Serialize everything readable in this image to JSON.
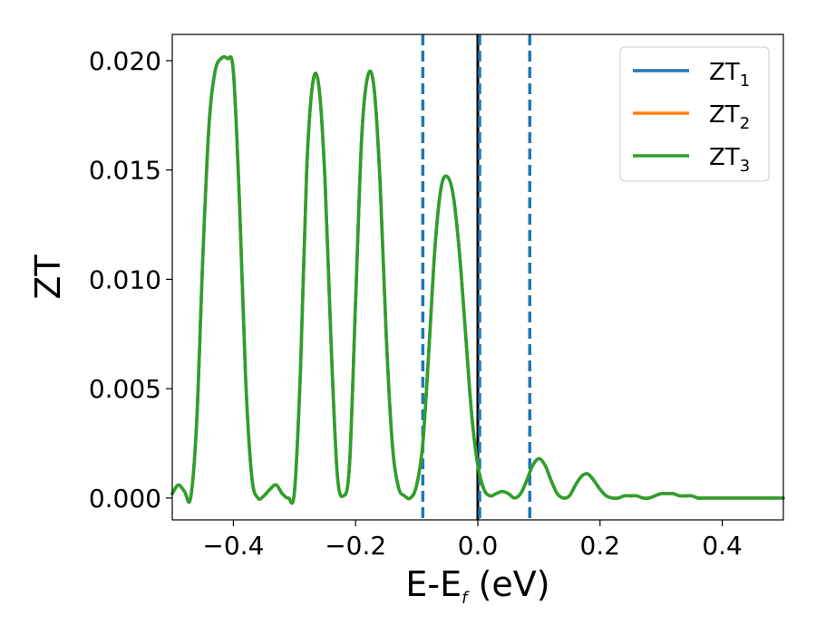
{
  "chart_data": {
    "type": "line",
    "xlabel_main": "E-E",
    "xlabel_sub": "f",
    "xlabel_tail": " (eV)",
    "ylabel": "ZT",
    "xlim": [
      -0.5,
      0.5
    ],
    "ylim": [
      -0.001,
      0.0212
    ],
    "xticks": [
      -0.4,
      -0.2,
      0.0,
      0.2,
      0.4
    ],
    "xtick_labels": [
      "−0.4",
      "−0.2",
      "0.0",
      "0.2",
      "0.4"
    ],
    "yticks": [
      0.0,
      0.005,
      0.01,
      0.015,
      0.02
    ],
    "ytick_labels": [
      "0.000",
      "0.005",
      "0.010",
      "0.015",
      "0.020"
    ],
    "legend_position": "top-right",
    "vlines": [
      {
        "x": -0.09,
        "style": "dashed",
        "color": "#1f77b4"
      },
      {
        "x": 0.0,
        "style": "solid",
        "color": "#000000"
      },
      {
        "x": 0.003,
        "style": "dashed",
        "color": "#1f77b4"
      },
      {
        "x": 0.085,
        "style": "dashed",
        "color": "#1f77b4"
      }
    ],
    "x": [
      -0.5,
      -0.49,
      -0.48,
      -0.47,
      -0.46,
      -0.45,
      -0.44,
      -0.43,
      -0.42,
      -0.41,
      -0.4,
      -0.39,
      -0.38,
      -0.37,
      -0.36,
      -0.35,
      -0.34,
      -0.33,
      -0.32,
      -0.31,
      -0.3,
      -0.29,
      -0.28,
      -0.27,
      -0.26,
      -0.25,
      -0.24,
      -0.23,
      -0.22,
      -0.21,
      -0.2,
      -0.19,
      -0.18,
      -0.17,
      -0.16,
      -0.15,
      -0.14,
      -0.13,
      -0.12,
      -0.11,
      -0.1,
      -0.09,
      -0.08,
      -0.07,
      -0.06,
      -0.05,
      -0.04,
      -0.03,
      -0.02,
      -0.01,
      0.0,
      0.01,
      0.02,
      0.03,
      0.04,
      0.05,
      0.06,
      0.07,
      0.08,
      0.09,
      0.1,
      0.11,
      0.12,
      0.13,
      0.14,
      0.15,
      0.16,
      0.17,
      0.18,
      0.19,
      0.2,
      0.21,
      0.22,
      0.23,
      0.24,
      0.25,
      0.26,
      0.27,
      0.28,
      0.29,
      0.3,
      0.31,
      0.32,
      0.33,
      0.34,
      0.35,
      0.36,
      0.37,
      0.38,
      0.39,
      0.4,
      0.41,
      0.42,
      0.43,
      0.44,
      0.45,
      0.46,
      0.47,
      0.48,
      0.49,
      0.5
    ],
    "series": [
      {
        "name": "ZT",
        "sub": "1",
        "color": "#1f77b4",
        "values": [
          0.0002,
          0.0006,
          0.0003,
          0.0,
          0.0035,
          0.011,
          0.017,
          0.0195,
          0.0201,
          0.0201,
          0.0195,
          0.0135,
          0.0055,
          0.001,
          0.0,
          0.0001,
          0.0004,
          0.0006,
          0.0002,
          0.0,
          0.0003,
          0.006,
          0.015,
          0.019,
          0.0188,
          0.0145,
          0.007,
          0.0011,
          0.0001,
          0.0015,
          0.009,
          0.0165,
          0.0193,
          0.0188,
          0.0145,
          0.0075,
          0.0025,
          0.0005,
          0.0001,
          0.0,
          0.0006,
          0.0025,
          0.0068,
          0.0115,
          0.0142,
          0.0147,
          0.0138,
          0.0112,
          0.0075,
          0.0038,
          0.0015,
          0.0004,
          0.0001,
          0.0002,
          0.0003,
          0.0002,
          0.0,
          0.0002,
          0.0008,
          0.0015,
          0.0018,
          0.0015,
          0.0008,
          0.0002,
          0.0,
          0.0001,
          0.0006,
          0.001,
          0.0011,
          0.0008,
          0.0004,
          0.0001,
          0.0,
          0.0,
          0.0001,
          0.0001,
          0.0001,
          0.0,
          0.0,
          0.0001,
          0.0002,
          0.0002,
          0.0002,
          0.0001,
          0.0001,
          0.0001,
          0.0,
          0.0,
          0.0,
          0.0,
          0.0,
          0.0,
          0.0,
          0.0,
          0.0,
          0.0,
          0.0,
          0.0,
          0.0,
          0.0,
          0.0
        ]
      },
      {
        "name": "ZT",
        "sub": "2",
        "color": "#ff7f0e",
        "values": [
          0.0002,
          0.0006,
          0.0003,
          0.0,
          0.0035,
          0.011,
          0.017,
          0.0195,
          0.0201,
          0.0201,
          0.0195,
          0.0135,
          0.0055,
          0.001,
          0.0,
          0.0001,
          0.0004,
          0.0006,
          0.0002,
          0.0,
          0.0003,
          0.006,
          0.015,
          0.019,
          0.0188,
          0.0145,
          0.007,
          0.0011,
          0.0001,
          0.0015,
          0.009,
          0.0165,
          0.0193,
          0.0188,
          0.0145,
          0.0075,
          0.0025,
          0.0005,
          0.0001,
          0.0,
          0.0006,
          0.0025,
          0.0068,
          0.0115,
          0.0142,
          0.0147,
          0.0138,
          0.0112,
          0.0075,
          0.0038,
          0.0015,
          0.0004,
          0.0001,
          0.0002,
          0.0003,
          0.0002,
          0.0,
          0.0002,
          0.0008,
          0.0015,
          0.0018,
          0.0015,
          0.0008,
          0.0002,
          0.0,
          0.0001,
          0.0006,
          0.001,
          0.0011,
          0.0008,
          0.0004,
          0.0001,
          0.0,
          0.0,
          0.0001,
          0.0001,
          0.0001,
          0.0,
          0.0,
          0.0001,
          0.0002,
          0.0002,
          0.0002,
          0.0001,
          0.0001,
          0.0001,
          0.0,
          0.0,
          0.0,
          0.0,
          0.0,
          0.0,
          0.0,
          0.0,
          0.0,
          0.0,
          0.0,
          0.0,
          0.0,
          0.0,
          0.0
        ]
      },
      {
        "name": "ZT",
        "sub": "3",
        "color": "#2ca02c",
        "values": [
          0.0002,
          0.0006,
          0.0003,
          0.0,
          0.0035,
          0.011,
          0.017,
          0.0195,
          0.0201,
          0.0201,
          0.0195,
          0.0135,
          0.0055,
          0.001,
          0.0,
          0.0001,
          0.0004,
          0.0006,
          0.0002,
          0.0,
          0.0003,
          0.006,
          0.015,
          0.019,
          0.0188,
          0.0145,
          0.007,
          0.0011,
          0.0001,
          0.0015,
          0.009,
          0.0165,
          0.0193,
          0.0188,
          0.0145,
          0.0075,
          0.0025,
          0.0005,
          0.0001,
          0.0,
          0.0006,
          0.0025,
          0.0068,
          0.0115,
          0.0142,
          0.0147,
          0.0138,
          0.0112,
          0.0075,
          0.0038,
          0.0015,
          0.0004,
          0.0001,
          0.0002,
          0.0003,
          0.0002,
          0.0,
          0.0002,
          0.0008,
          0.0015,
          0.0018,
          0.0015,
          0.0008,
          0.0002,
          0.0,
          0.0001,
          0.0006,
          0.001,
          0.0011,
          0.0008,
          0.0004,
          0.0001,
          0.0,
          0.0,
          0.0001,
          0.0001,
          0.0001,
          0.0,
          0.0,
          0.0001,
          0.0002,
          0.0002,
          0.0002,
          0.0001,
          0.0001,
          0.0001,
          0.0,
          0.0,
          0.0,
          0.0,
          0.0,
          0.0,
          0.0,
          0.0,
          0.0,
          0.0,
          0.0,
          0.0,
          0.0,
          0.0,
          0.0
        ]
      }
    ]
  }
}
